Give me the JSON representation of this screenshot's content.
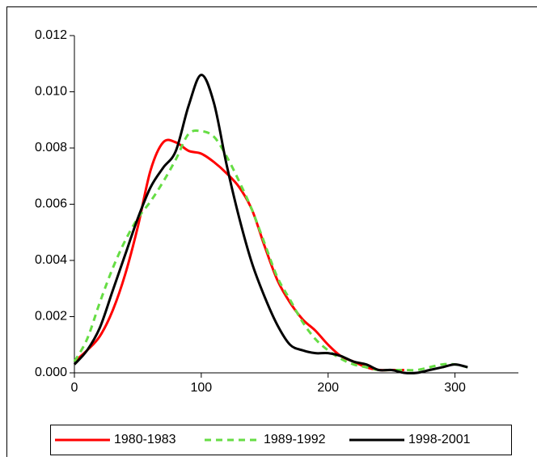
{
  "chart_data": {
    "type": "line",
    "x": [
      0,
      10,
      20,
      30,
      40,
      50,
      60,
      70,
      80,
      90,
      100,
      110,
      120,
      130,
      140,
      150,
      160,
      170,
      180,
      190,
      200,
      210,
      220,
      230,
      240,
      250,
      260,
      270,
      280,
      290,
      300,
      310
    ],
    "series": [
      {
        "name": "1980-1983",
        "color": "#ff0000",
        "line_style": "solid",
        "values": [
          0.0004,
          0.0008,
          0.0013,
          0.0022,
          0.0035,
          0.0052,
          0.0072,
          0.0082,
          0.0082,
          0.0079,
          0.0078,
          0.0075,
          0.0071,
          0.0066,
          0.0058,
          0.0045,
          0.0033,
          0.0025,
          0.0019,
          0.0015,
          0.001,
          0.0006,
          0.0004,
          0.0002,
          0.0001,
          0.0001,
          0.0001,
          null,
          null,
          null,
          null,
          null
        ]
      },
      {
        "name": "1989-1992",
        "color": "#66dd44",
        "line_style": "dashed",
        "values": [
          0.0004,
          0.0012,
          0.0025,
          0.0037,
          0.0047,
          0.0055,
          0.0061,
          0.0068,
          0.0076,
          0.0085,
          0.0086,
          0.0084,
          0.0077,
          0.0068,
          0.0058,
          0.0046,
          0.0034,
          0.0026,
          0.0018,
          0.0012,
          0.0008,
          0.0005,
          0.0003,
          0.0002,
          0.0001,
          0.0001,
          0.0001,
          0.0001,
          0.0002,
          0.0003,
          0.0003,
          0.0002
        ]
      },
      {
        "name": "1998-2001",
        "color": "#000000",
        "line_style": "solid",
        "values": [
          0.0003,
          0.0008,
          0.0016,
          0.0029,
          0.0042,
          0.0055,
          0.0066,
          0.0073,
          0.0079,
          0.0095,
          0.0106,
          0.0096,
          0.0074,
          0.0055,
          0.0039,
          0.0027,
          0.0017,
          0.001,
          0.0008,
          0.0007,
          0.0007,
          0.0006,
          0.0004,
          0.0003,
          0.0001,
          0.0001,
          0.0,
          0.0,
          0.0001,
          0.0002,
          0.0003,
          0.0002
        ]
      }
    ],
    "xlim": [
      0,
      350
    ],
    "ylim": [
      0,
      0.012
    ],
    "xticks": [
      0,
      100,
      200,
      300
    ],
    "yticks": [
      {
        "value": 0,
        "label": "0.000"
      },
      {
        "value": 0.002,
        "label": "0.002"
      },
      {
        "value": 0.004,
        "label": "0.004"
      },
      {
        "value": 0.006,
        "label": "0.006"
      },
      {
        "value": 0.008,
        "label": "0.008"
      },
      {
        "value": 0.01,
        "label": "0.010"
      },
      {
        "value": 0.012,
        "label": "0.012"
      }
    ],
    "grid": false,
    "legend": "bottom"
  }
}
